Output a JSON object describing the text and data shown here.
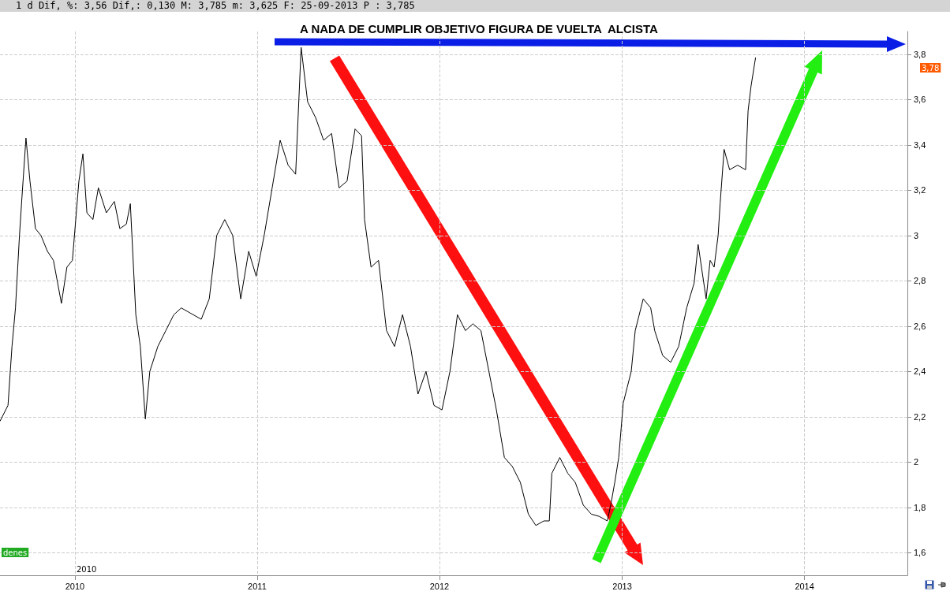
{
  "chart_data": {
    "type": "line",
    "title": "A NADA DE CUMPLIR OBJETIVO FIGURA DE VUELTA  ALCISTA",
    "subtitle": "1 d Dif, %: 3,56 Dif,: 0,130 M: 3,785 m: 3,625 F: 25-09-2013 P : 3,785",
    "x": [
      "2009-08-04",
      "2009-08-20",
      "2009-08-28",
      "2009-09-04",
      "2009-09-12",
      "2009-09-17",
      "2009-09-25",
      "2009-10-03",
      "2009-10-14",
      "2009-10-25",
      "2009-11-07",
      "2009-11-19",
      "2009-12-05",
      "2009-12-16",
      "2009-12-27",
      "2010-01-09",
      "2010-01-17",
      "2010-01-25",
      "2010-02-06",
      "2010-02-17",
      "2010-03-05",
      "2010-03-21",
      "2010-04-01",
      "2010-04-14",
      "2010-04-22",
      "2010-05-03",
      "2010-05-12",
      "2010-05-22",
      "2010-05-31",
      "2010-06-16",
      "2010-07-02",
      "2010-07-18",
      "2010-08-02",
      "2010-08-18",
      "2010-09-11",
      "2010-09-27",
      "2010-10-12",
      "2010-10-28",
      "2010-11-13",
      "2010-11-29",
      "2010-12-15",
      "2010-12-30",
      "2011-01-15",
      "2011-01-31",
      "2011-02-16",
      "2011-03-04",
      "2011-03-19",
      "2011-03-30",
      "2011-04-12",
      "2011-04-28",
      "2011-05-14",
      "2011-05-30",
      "2011-06-14",
      "2011-06-30",
      "2011-07-16",
      "2011-07-29",
      "2011-08-04",
      "2011-08-17",
      "2011-09-01",
      "2011-09-17",
      "2011-10-03",
      "2011-10-19",
      "2011-11-04",
      "2011-11-19",
      "2011-12-05",
      "2011-12-21",
      "2012-01-06",
      "2012-01-22",
      "2012-02-06",
      "2012-02-22",
      "2012-03-08",
      "2012-03-24",
      "2012-04-09",
      "2012-04-24",
      "2012-05-10",
      "2012-05-26",
      "2012-06-11",
      "2012-06-27",
      "2012-07-12",
      "2012-07-28",
      "2012-08-08",
      "2012-08-13",
      "2012-08-29",
      "2012-09-14",
      "2012-09-29",
      "2012-10-15",
      "2012-10-31",
      "2012-11-16",
      "2012-12-02",
      "2012-12-09",
      "2012-12-17",
      "2012-12-25",
      "2013-01-03",
      "2013-01-11",
      "2013-01-19",
      "2013-01-27",
      "2013-02-12",
      "2013-02-27",
      "2013-03-07",
      "2013-03-23",
      "2013-04-08",
      "2013-04-24",
      "2013-05-10",
      "2013-05-25",
      "2013-06-02",
      "2013-06-18",
      "2013-06-26",
      "2013-07-04",
      "2013-07-12",
      "2013-07-16",
      "2013-07-24",
      "2013-08-04",
      "2013-08-20",
      "2013-09-05",
      "2013-09-10",
      "2013-09-16",
      "2013-09-25"
    ],
    "values": [
      2.18,
      2.25,
      2.51,
      2.68,
      3.0,
      3.17,
      3.43,
      3.24,
      3.03,
      3.0,
      2.93,
      2.89,
      2.7,
      2.86,
      2.89,
      3.24,
      3.36,
      3.1,
      3.07,
      3.21,
      3.1,
      3.15,
      3.03,
      3.05,
      3.14,
      2.65,
      2.51,
      2.19,
      2.4,
      2.51,
      2.58,
      2.65,
      2.68,
      2.66,
      2.63,
      2.72,
      3.0,
      3.07,
      3.0,
      2.72,
      2.93,
      2.82,
      3.0,
      3.21,
      3.42,
      3.31,
      3.27,
      3.83,
      3.59,
      3.52,
      3.42,
      3.45,
      3.21,
      3.24,
      3.47,
      3.44,
      3.07,
      2.86,
      2.89,
      2.58,
      2.51,
      2.65,
      2.51,
      2.3,
      2.4,
      2.25,
      2.23,
      2.4,
      2.65,
      2.58,
      2.61,
      2.58,
      2.4,
      2.23,
      2.02,
      1.98,
      1.91,
      1.77,
      1.72,
      1.74,
      1.74,
      1.95,
      2.02,
      1.95,
      1.91,
      1.81,
      1.77,
      1.76,
      1.74,
      1.81,
      1.91,
      2.02,
      2.26,
      2.33,
      2.4,
      2.58,
      2.72,
      2.68,
      2.58,
      2.47,
      2.44,
      2.51,
      2.68,
      2.79,
      2.96,
      2.72,
      2.89,
      2.86,
      3.0,
      3.14,
      3.38,
      3.29,
      3.31,
      3.29,
      3.55,
      3.66,
      3.785
    ],
    "color": "#000000",
    "xlim": [
      "2009-08-04",
      "2014-07-26"
    ],
    "xticks": [
      "2010",
      "2011",
      "2012",
      "2013",
      "2014"
    ],
    "ylim": [
      1.5,
      3.9
    ],
    "yticks": [
      {
        "value": 1.6,
        "label": "1,6"
      },
      {
        "value": 1.8,
        "label": "1,8"
      },
      {
        "value": 2,
        "label": "2"
      },
      {
        "value": 2.2,
        "label": "2,2"
      },
      {
        "value": 2.4,
        "label": "2,4"
      },
      {
        "value": 2.6,
        "label": "2,6"
      },
      {
        "value": 2.8,
        "label": "2,8"
      },
      {
        "value": 3,
        "label": "3"
      },
      {
        "value": 3.2,
        "label": "3,2"
      },
      {
        "value": 3.4,
        "label": "3,4"
      },
      {
        "value": 3.6,
        "label": "3,6"
      },
      {
        "value": 3.8,
        "label": "3,8"
      }
    ],
    "grid": true,
    "line_style": "solid",
    "annotations": [
      "3,78",
      "denes",
      "2010"
    ]
  }
}
